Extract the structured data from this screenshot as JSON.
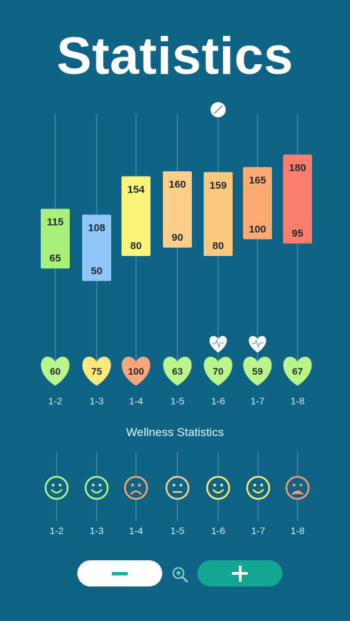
{
  "header": {
    "title": "Statistics"
  },
  "wellness": {
    "title": "Wellness Statistics"
  },
  "colors": {
    "background": "#0f6384",
    "heart": "#b9f58a",
    "heart_mid": "#fde87a",
    "heart_high": "#f9a67a",
    "primary_button": "#13a693",
    "good": "#b9f58a",
    "neutral": "#fcd28f",
    "bad": "#f49a7a"
  },
  "chart_data": {
    "type": "bar",
    "title": "Statistics",
    "categories": [
      "1-2",
      "1-3",
      "1-4",
      "1-5",
      "1-6",
      "1-7",
      "1-8"
    ],
    "series": [
      {
        "values": [
          115,
          108,
          154,
          160,
          159,
          165,
          180
        ]
      },
      {
        "values": [
          65,
          50,
          80,
          90,
          80,
          100,
          95
        ]
      }
    ],
    "heart_rate": [
      60,
      75,
      100,
      63,
      70,
      59,
      67
    ],
    "bar_colors": [
      "#a8f07a",
      "#8fc6f7",
      "#fbf37a",
      "#fcce89",
      "#fcc77e",
      "#fcaa71",
      "#fb7d6e"
    ],
    "heart_colors": [
      "#b9f58a",
      "#fde87a",
      "#f9a67a",
      "#b9f58a",
      "#b9f58a",
      "#b9f58a",
      "#b9f58a"
    ],
    "markers": [
      {
        "category": "1-6",
        "icon": "pill-icon"
      },
      {
        "category": "1-6",
        "icon": "heartbeat-icon"
      },
      {
        "category": "1-7",
        "icon": "heartbeat-icon"
      }
    ],
    "ylim": [
      0,
      200
    ],
    "grid": false,
    "legend": "none"
  },
  "wellness_chart": {
    "categories": [
      "1-2",
      "1-3",
      "1-4",
      "1-5",
      "1-6",
      "1-7",
      "1-8"
    ],
    "moods": [
      "happy",
      "happy",
      "sad",
      "neutral",
      "happy",
      "happy",
      "very-sad"
    ],
    "mood_colors": [
      "#b9f58a",
      "#b9f58a",
      "#f7a977",
      "#fcd28f",
      "#fde87a",
      "#fde87a",
      "#f49a7a"
    ]
  },
  "controls": {
    "zoom_out_label": "",
    "zoom_in_label": ""
  }
}
